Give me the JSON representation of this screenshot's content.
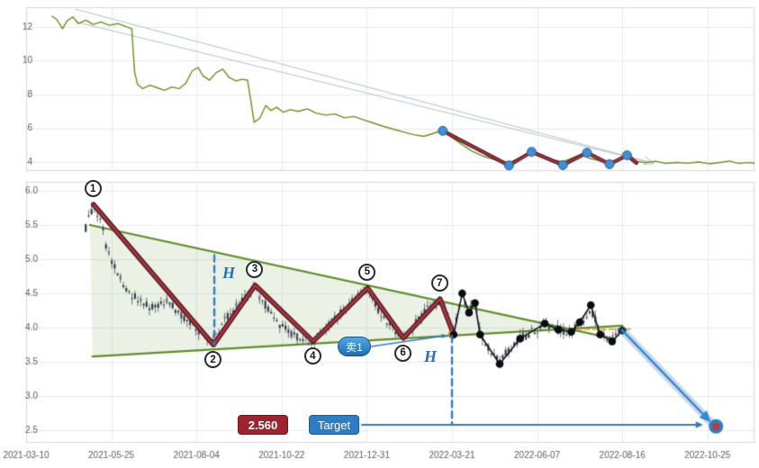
{
  "colors": {
    "price_line": "#6a9023",
    "trend_green": "#5e8f2a",
    "triangle_fill": "rgba(132,171,92,0.16)",
    "zigzag_red": "#a43540",
    "zigzag_edge": "#4f161d",
    "marker_blue": "#3f8fd2",
    "marker_blue_edge": "#26659c",
    "dash_blue": "#2d7dd2",
    "yellow_dash": "#d9b13b",
    "black_line": "#16161e",
    "black_dot": "#0b0b12",
    "candle_dark": "#343b49",
    "candle_mid": "#454c5c",
    "candle_light": "#6b7284",
    "wick": "#4a5160",
    "wedge_gray": "#b9c4d2",
    "grid": "#e8ebf0",
    "panel_border": "#d4d9e0",
    "tick_text": "#5a6068",
    "target_blue": "#2e7cc3",
    "badge_red": "#9a2430",
    "sell_dot": "#e8b02a",
    "endpoint_outer": "#2f7fc1",
    "endpoint_inner": "#bf3a3a"
  },
  "chart_data": [
    {
      "id": "overview",
      "type": "line",
      "title": "",
      "xlabel": "",
      "ylabel": "",
      "yticks": [
        "12",
        "10",
        "8",
        "6",
        "4"
      ],
      "ytick_values": [
        12,
        10,
        8,
        6,
        4
      ],
      "ylim": [
        3.47,
        13.17
      ],
      "grid": true,
      "series": [
        {
          "name": "price",
          "points": [
            [
              0.035,
              12.65
            ],
            [
              0.042,
              12.45
            ],
            [
              0.05,
              11.9
            ],
            [
              0.056,
              12.35
            ],
            [
              0.064,
              12.6
            ],
            [
              0.072,
              12.2
            ],
            [
              0.082,
              12.4
            ],
            [
              0.092,
              12.15
            ],
            [
              0.103,
              12.3
            ],
            [
              0.114,
              12.1
            ],
            [
              0.126,
              12.2
            ],
            [
              0.138,
              12.0
            ],
            [
              0.145,
              11.9
            ],
            [
              0.149,
              9.3
            ],
            [
              0.153,
              8.6
            ],
            [
              0.16,
              8.35
            ],
            [
              0.17,
              8.55
            ],
            [
              0.18,
              8.4
            ],
            [
              0.19,
              8.25
            ],
            [
              0.2,
              8.45
            ],
            [
              0.21,
              8.35
            ],
            [
              0.219,
              8.65
            ],
            [
              0.228,
              9.4
            ],
            [
              0.236,
              9.6
            ],
            [
              0.243,
              9.1
            ],
            [
              0.252,
              8.85
            ],
            [
              0.261,
              9.3
            ],
            [
              0.27,
              9.5
            ],
            [
              0.279,
              9.0
            ],
            [
              0.288,
              8.8
            ],
            [
              0.296,
              8.9
            ],
            [
              0.304,
              8.85
            ],
            [
              0.309,
              7.5
            ],
            [
              0.313,
              6.35
            ],
            [
              0.321,
              6.6
            ],
            [
              0.329,
              7.35
            ],
            [
              0.336,
              7.05
            ],
            [
              0.344,
              7.25
            ],
            [
              0.353,
              6.95
            ],
            [
              0.363,
              7.1
            ],
            [
              0.374,
              7.0
            ],
            [
              0.386,
              7.15
            ],
            [
              0.398,
              6.9
            ],
            [
              0.411,
              6.78
            ],
            [
              0.424,
              6.85
            ],
            [
              0.437,
              6.62
            ],
            [
              0.45,
              6.7
            ],
            [
              0.463,
              6.5
            ],
            [
              0.476,
              6.32
            ],
            [
              0.49,
              6.12
            ],
            [
              0.504,
              5.95
            ],
            [
              0.518,
              5.78
            ],
            [
              0.532,
              5.62
            ],
            [
              0.546,
              5.52
            ],
            [
              0.558,
              5.68
            ],
            [
              0.566,
              5.8
            ],
            [
              0.572,
              5.88
            ],
            [
              0.585,
              5.45
            ],
            [
              0.598,
              5.05
            ],
            [
              0.612,
              4.65
            ],
            [
              0.627,
              4.35
            ],
            [
              0.645,
              4.12
            ],
            [
              0.663,
              3.96
            ],
            [
              0.678,
              4.25
            ],
            [
              0.694,
              4.55
            ],
            [
              0.706,
              4.35
            ],
            [
              0.72,
              4.15
            ],
            [
              0.737,
              4.02
            ],
            [
              0.75,
              4.25
            ],
            [
              0.762,
              4.45
            ],
            [
              0.775,
              4.2
            ],
            [
              0.788,
              4.06
            ],
            [
              0.801,
              3.96
            ],
            [
              0.812,
              4.15
            ],
            [
              0.825,
              4.3
            ],
            [
              0.836,
              4.06
            ],
            [
              0.85,
              3.96
            ],
            [
              0.864,
              4.05
            ],
            [
              0.878,
              3.92
            ],
            [
              0.893,
              3.98
            ],
            [
              0.908,
              3.93
            ],
            [
              0.923,
              4.0
            ],
            [
              0.938,
              3.9
            ],
            [
              0.953,
              3.98
            ],
            [
              0.966,
              4.06
            ],
            [
              0.978,
              3.92
            ],
            [
              0.99,
              3.97
            ],
            [
              1.0,
              3.94
            ]
          ]
        }
      ],
      "wedge_lines": [
        [
          [
            0.068,
            13.05
          ],
          [
            0.862,
            3.92
          ]
        ],
        [
          [
            0.068,
            12.3
          ],
          [
            0.862,
            3.92
          ]
        ]
      ],
      "zigzag": [
        [
          0.572,
          5.85
        ],
        [
          0.663,
          3.8
        ],
        [
          0.694,
          4.6
        ],
        [
          0.737,
          3.82
        ],
        [
          0.77,
          4.55
        ],
        [
          0.801,
          3.87
        ],
        [
          0.825,
          4.4
        ],
        [
          0.838,
          3.95
        ]
      ],
      "marker_count": 7
    },
    {
      "id": "main",
      "type": "candlestick",
      "title": "",
      "xlabel": "",
      "ylabel": "",
      "xticks": [
        "2021-03-10",
        "2021-05-25",
        "2021-08-04",
        "2021-10-22",
        "2021-12-31",
        "2022-03-21",
        "2022-06-07",
        "2022-08-16",
        "2022-10-25"
      ],
      "yticks": [
        "6.0",
        "5.5",
        "5.0",
        "4.5",
        "4.0",
        "3.5",
        "3.0",
        "2.5"
      ],
      "ytick_values": [
        6.0,
        5.5,
        5.0,
        4.5,
        4.0,
        3.5,
        3.0,
        2.5
      ],
      "ylim": [
        2.32,
        6.13
      ],
      "grid": true,
      "price_path": [
        [
          0.7,
          5.45
        ],
        [
          0.79,
          5.8
        ],
        [
          0.88,
          5.55
        ],
        [
          0.95,
          5.15
        ],
        [
          1.05,
          4.85
        ],
        [
          1.18,
          4.55
        ],
        [
          1.32,
          4.4
        ],
        [
          1.48,
          4.3
        ],
        [
          1.62,
          4.4
        ],
        [
          1.78,
          4.25
        ],
        [
          1.95,
          4.05
        ],
        [
          2.08,
          3.9
        ],
        [
          2.2,
          3.78
        ],
        [
          2.33,
          4.1
        ],
        [
          2.5,
          4.35
        ],
        [
          2.69,
          4.58
        ],
        [
          2.8,
          4.35
        ],
        [
          2.93,
          4.1
        ],
        [
          3.08,
          3.95
        ],
        [
          3.22,
          3.85
        ],
        [
          3.37,
          3.82
        ],
        [
          3.52,
          4.0
        ],
        [
          3.68,
          4.2
        ],
        [
          3.85,
          4.4
        ],
        [
          4.01,
          4.55
        ],
        [
          4.14,
          4.25
        ],
        [
          4.28,
          4.02
        ],
        [
          4.43,
          3.88
        ],
        [
          4.56,
          4.05
        ],
        [
          4.7,
          4.25
        ],
        [
          4.86,
          4.4
        ],
        [
          4.95,
          4.15
        ],
        [
          5.02,
          3.92
        ],
        [
          5.12,
          4.45
        ],
        [
          5.2,
          4.25
        ],
        [
          5.27,
          4.35
        ],
        [
          5.33,
          3.92
        ],
        [
          5.45,
          3.65
        ],
        [
          5.56,
          3.5
        ],
        [
          5.68,
          3.7
        ],
        [
          5.8,
          3.84
        ],
        [
          5.95,
          3.95
        ],
        [
          6.09,
          4.04
        ],
        [
          6.25,
          3.98
        ],
        [
          6.4,
          3.94
        ],
        [
          6.5,
          4.06
        ],
        [
          6.63,
          4.28
        ],
        [
          6.74,
          3.92
        ],
        [
          6.88,
          3.82
        ],
        [
          7.0,
          3.96
        ]
      ],
      "zigzag": [
        [
          0.79,
          5.8
        ],
        [
          2.2,
          3.75
        ],
        [
          2.69,
          4.62
        ],
        [
          3.37,
          3.8
        ],
        [
          4.01,
          4.58
        ],
        [
          4.43,
          3.85
        ],
        [
          4.86,
          4.42
        ],
        [
          5.02,
          3.9
        ]
      ],
      "pivots": [
        {
          "n": "1",
          "t": 0.79,
          "price": 5.8,
          "side": "above"
        },
        {
          "n": "2",
          "t": 2.2,
          "price": 3.75,
          "side": "below"
        },
        {
          "n": "3",
          "t": 2.69,
          "price": 4.62,
          "side": "above"
        },
        {
          "n": "4",
          "t": 3.37,
          "price": 3.8,
          "side": "below"
        },
        {
          "n": "5",
          "t": 4.01,
          "price": 4.58,
          "side": "above"
        },
        {
          "n": "6",
          "t": 4.43,
          "price": 3.85,
          "side": "below"
        },
        {
          "n": "7",
          "t": 4.86,
          "price": 4.42,
          "side": "above"
        }
      ],
      "post_path": [
        [
          5.02,
          3.9
        ],
        [
          5.12,
          4.5
        ],
        [
          5.2,
          4.22
        ],
        [
          5.27,
          4.36
        ],
        [
          5.33,
          3.9
        ],
        [
          5.56,
          3.47
        ],
        [
          5.8,
          3.84
        ],
        [
          6.09,
          4.06
        ],
        [
          6.25,
          3.97
        ],
        [
          6.4,
          3.94
        ],
        [
          6.5,
          4.08
        ],
        [
          6.63,
          4.33
        ],
        [
          6.74,
          3.9
        ],
        [
          6.88,
          3.8
        ],
        [
          7.0,
          3.96
        ]
      ],
      "trendlines": {
        "upper": [
          [
            0.75,
            5.5
          ],
          [
            6.9,
            3.84
          ]
        ],
        "lower": [
          [
            0.78,
            3.58
          ],
          [
            7.0,
            4.03
          ]
        ],
        "apex": [
          6.37,
          3.98
        ],
        "fill_polygon": [
          [
            0.75,
            5.5
          ],
          [
            6.37,
            3.98
          ],
          [
            0.78,
            3.58
          ]
        ],
        "yellow_extension": [
          [
            6.37,
            3.98
          ],
          [
            7.1,
            3.98
          ]
        ]
      },
      "measure_lines": [
        {
          "label": "H",
          "t": 2.21,
          "from": 5.06,
          "to": 3.76
        },
        {
          "label": "H",
          "t": 5.0,
          "from": 3.88,
          "to": 2.6
        }
      ],
      "sell_signal": {
        "label": "卖1",
        "t": 5.0,
        "price": 3.9
      },
      "projection_arrow": {
        "from": [
          7.0,
          3.96
        ],
        "to": [
          8.04,
          2.62
        ]
      },
      "target": {
        "label": "Target",
        "price_label": "2.560",
        "price": 2.56,
        "t": 8.1
      }
    }
  ]
}
